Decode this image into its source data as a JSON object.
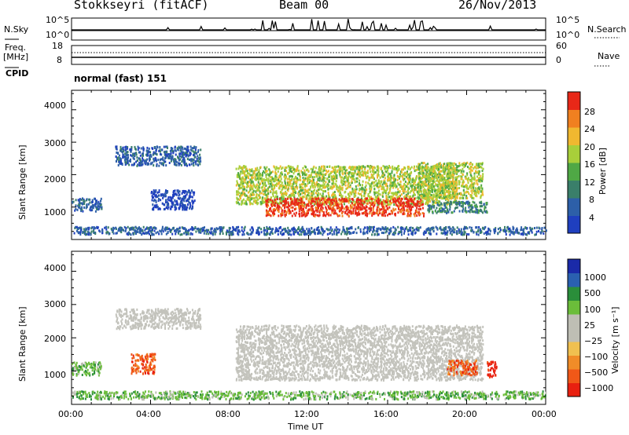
{
  "header": {
    "station": "Stokkseyri (fitACF)",
    "beam": "Beam 00",
    "date": "26/Nov/2013"
  },
  "labels": {
    "nsky": "N.Sky",
    "nsearch": "N.Search",
    "freq_line1": "Freq.",
    "freq_line2": "[MHz]",
    "nave": "Nave",
    "cpid": "CPID",
    "cpid_value": "normal (fast) 151",
    "ylabel_range": "Slant Range [km]",
    "xlabel": "Time UT",
    "power_cbar_label": "Power [dB]",
    "velocity_cbar_label": "Velocity  [m s⁻¹]"
  },
  "noise_ticks": {
    "top": "10^5",
    "bottom": "10^0",
    "top_right": "10^5",
    "bottom_right": "10^0"
  },
  "freq_ticks": {
    "left_top": "18",
    "left_bottom": "8",
    "right_top": "60",
    "right_bottom": "0"
  },
  "colors": {
    "power": [
      "#1f3fbf",
      "#2d5fa8",
      "#3a7f6a",
      "#4fa845",
      "#a8cf3a",
      "#f0b830",
      "#f08020",
      "#e82818"
    ],
    "velocity": [
      "#e82010",
      "#f05818",
      "#f08c28",
      "#f0c050",
      "#bebeb4",
      "#bebeb4",
      "#6bbd3a",
      "#2a8e3a",
      "#2a60b0",
      "#1a2aa8"
    ],
    "gray_velocity": "#c3c3bc"
  },
  "chart_data": [
    {
      "type": "heatmap",
      "panel": "power",
      "x_ticks": [
        "00:00",
        "04:00",
        "08:00",
        "12:00",
        "16:00",
        "20:00",
        "00:00"
      ],
      "y_ticks": [
        "1000",
        "2000",
        "3000",
        "4000"
      ],
      "ylim": [
        0,
        4600
      ],
      "xlim_hours": [
        0,
        24
      ],
      "colorbar_ticks": [
        "4",
        "8",
        "12",
        "16",
        "20",
        "24",
        "28"
      ],
      "colorbar_unit": "dB",
      "echo_regions": [
        {
          "t0": 0.0,
          "t1": 1.5,
          "r0": 900,
          "r1": 1300,
          "level": 1
        },
        {
          "t0": 2.2,
          "t1": 6.5,
          "r0": 2300,
          "r1": 2900,
          "level": 1
        },
        {
          "t0": 4.0,
          "t1": 6.2,
          "r0": 950,
          "r1": 1550,
          "level": 0
        },
        {
          "t0": 8.3,
          "t1": 19.5,
          "r0": 1100,
          "r1": 2300,
          "level": 4
        },
        {
          "t0": 9.8,
          "t1": 17.8,
          "r0": 750,
          "r1": 1300,
          "level": 7
        },
        {
          "t0": 17.5,
          "t1": 20.8,
          "r0": 1300,
          "r1": 2400,
          "level": 4
        },
        {
          "t0": 18.0,
          "t1": 21.0,
          "r0": 850,
          "r1": 1200,
          "level": 2
        },
        {
          "t0": 0.0,
          "t1": 24.0,
          "r0": 180,
          "r1": 420,
          "level": 1
        }
      ]
    },
    {
      "type": "heatmap",
      "panel": "velocity",
      "x_ticks": [
        "00:00",
        "04:00",
        "08:00",
        "12:00",
        "16:00",
        "20:00",
        "00:00"
      ],
      "y_ticks": [
        "1000",
        "2000",
        "3000",
        "4000"
      ],
      "ylim": [
        0,
        4600
      ],
      "xlim_hours": [
        0,
        24
      ],
      "colorbar_ticks": [
        "1000",
        "500",
        "100",
        "25",
        "−25",
        "−100",
        "−500",
        "−1000"
      ],
      "colorbar_unit": "m s-1",
      "echo_regions": [
        {
          "t0": 8.3,
          "t1": 20.8,
          "r0": 750,
          "r1": 2400,
          "level": 4
        },
        {
          "t0": 2.2,
          "t1": 6.5,
          "r0": 2300,
          "r1": 2900,
          "level": 4
        },
        {
          "t0": 0.0,
          "t1": 1.5,
          "r0": 900,
          "r1": 1300,
          "level": 6
        },
        {
          "t0": 3.0,
          "t1": 4.2,
          "r0": 950,
          "r1": 1550,
          "level": 1
        },
        {
          "t0": 19.0,
          "t1": 20.5,
          "r0": 900,
          "r1": 1350,
          "level": 1
        },
        {
          "t0": 21.0,
          "t1": 21.5,
          "r0": 850,
          "r1": 1350,
          "level": 0
        },
        {
          "t0": 0.0,
          "t1": 24.0,
          "r0": 180,
          "r1": 420,
          "level": 6
        }
      ]
    }
  ]
}
